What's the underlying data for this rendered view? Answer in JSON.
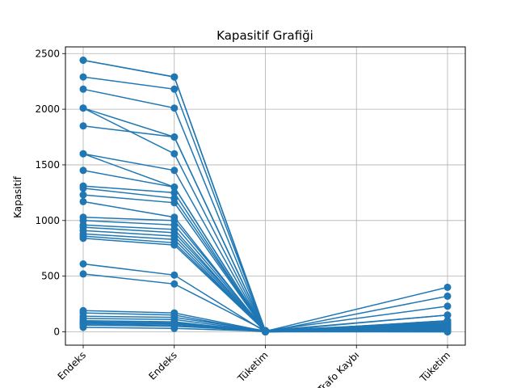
{
  "chart_data": {
    "type": "line",
    "title": "Kapasitif Grafiği",
    "xlabel": "",
    "ylabel": "Kapasitif",
    "categories": [
      "Endeks",
      "Endeks",
      "Tüketim",
      "Trafo Kaybı",
      "Tüketim"
    ],
    "ylim": [
      -120,
      2560
    ],
    "yticks": [
      0,
      500,
      1000,
      1500,
      2000,
      2500
    ],
    "grid": true,
    "marker": "circle",
    "line_color": "#1f77b4",
    "series": [
      {
        "values": [
          2440,
          2290,
          0,
          null,
          70
        ]
      },
      {
        "values": [
          2440,
          2290,
          10,
          null,
          60
        ]
      },
      {
        "values": [
          2290,
          2180,
          5,
          null,
          30
        ]
      },
      {
        "values": [
          2180,
          2010,
          0,
          null,
          20
        ]
      },
      {
        "values": [
          2010,
          1750,
          10,
          null,
          150
        ]
      },
      {
        "values": [
          2010,
          1600,
          0,
          null,
          40
        ]
      },
      {
        "values": [
          1850,
          1750,
          5,
          null,
          400
        ]
      },
      {
        "values": [
          1600,
          1450,
          0,
          null,
          320
        ]
      },
      {
        "values": [
          1600,
          1300,
          10,
          null,
          230
        ]
      },
      {
        "values": [
          1450,
          1300,
          5,
          null,
          150
        ]
      },
      {
        "values": [
          1310,
          1250,
          0,
          null,
          100
        ]
      },
      {
        "values": [
          1290,
          1200,
          10,
          null,
          80
        ]
      },
      {
        "values": [
          1230,
          1160,
          5,
          null,
          60
        ]
      },
      {
        "values": [
          1170,
          1030,
          0,
          null,
          50
        ]
      },
      {
        "values": [
          1030,
          1000,
          10,
          null,
          40
        ]
      },
      {
        "values": [
          1000,
          960,
          5,
          null,
          30
        ]
      },
      {
        "values": [
          960,
          920,
          0,
          null,
          20
        ]
      },
      {
        "values": [
          940,
          890,
          10,
          null,
          10
        ]
      },
      {
        "values": [
          910,
          860,
          5,
          null,
          0
        ]
      },
      {
        "values": [
          880,
          830,
          0,
          null,
          30
        ]
      },
      {
        "values": [
          860,
          800,
          10,
          null,
          50
        ]
      },
      {
        "values": [
          840,
          780,
          5,
          null,
          70
        ]
      },
      {
        "values": [
          610,
          510,
          0,
          null,
          100
        ]
      },
      {
        "values": [
          520,
          430,
          10,
          null,
          60
        ]
      },
      {
        "values": [
          190,
          170,
          5,
          null,
          40
        ]
      },
      {
        "values": [
          170,
          150,
          0,
          null,
          20
        ]
      },
      {
        "values": [
          140,
          130,
          10,
          null,
          90
        ]
      },
      {
        "values": [
          120,
          110,
          5,
          null,
          10
        ]
      },
      {
        "values": [
          100,
          90,
          0,
          null,
          30
        ]
      },
      {
        "values": [
          90,
          80,
          10,
          null,
          50
        ]
      },
      {
        "values": [
          80,
          70,
          5,
          null,
          20
        ]
      },
      {
        "values": [
          70,
          60,
          0,
          null,
          0
        ]
      },
      {
        "values": [
          60,
          50,
          10,
          null,
          40
        ]
      },
      {
        "values": [
          40,
          30,
          5,
          null,
          10
        ]
      }
    ]
  }
}
